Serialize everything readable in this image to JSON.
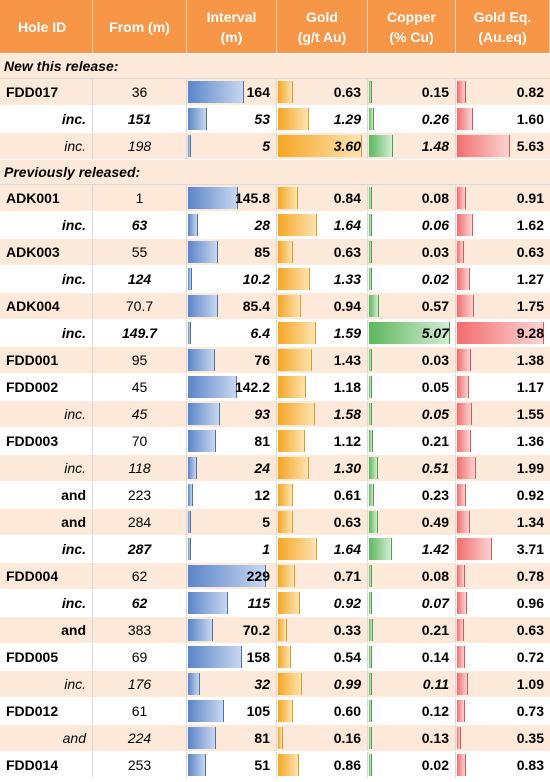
{
  "header": [
    "Hole ID",
    "From (m)",
    "Interval\n(m)",
    "Gold\n(g/t Au)",
    "Copper\n(% Cu)",
    "Gold Eq.\n(Au.eq)"
  ],
  "colors": {
    "header": "#f79646",
    "shade": "#fde9d9",
    "interval_bar": "#5b85c8",
    "gold_bar": "#f5a623",
    "copper_bar": "#5cb85c",
    "goldeq_bar": "#f26d6d"
  },
  "sections": [
    {
      "title": "New this release:",
      "rows": [
        {
          "id": "FDD017",
          "from": "36",
          "interval": "164",
          "gold": "0.63",
          "copper": "0.15",
          "goldeq": "0.82",
          "id_style": "b",
          "from_style": "",
          "vals_style": "b",
          "eq_style": "b",
          "shade": true
        },
        {
          "id": "inc.",
          "from": "151",
          "interval": "53",
          "gold": "1.29",
          "copper": "0.26",
          "goldeq": "1.60",
          "id_style": "bi",
          "from_style": "bi",
          "vals_style": "bi",
          "eq_style": "b",
          "shade": false
        },
        {
          "id": "inc.",
          "from": "198",
          "interval": "5",
          "gold": "3.60",
          "copper": "1.48",
          "goldeq": "5.63",
          "id_style": "i",
          "from_style": "i",
          "vals_style": "bi",
          "eq_style": "b",
          "shade": true
        }
      ]
    },
    {
      "title": "Previously released:",
      "rows": [
        {
          "id": "ADK001",
          "from": "1",
          "interval": "145.8",
          "gold": "0.84",
          "copper": "0.08",
          "goldeq": "0.91",
          "id_style": "b",
          "from_style": "",
          "vals_style": "b",
          "eq_style": "b",
          "shade": true
        },
        {
          "id": "inc.",
          "from": "63",
          "interval": "28",
          "gold": "1.64",
          "copper": "0.06",
          "goldeq": "1.62",
          "id_style": "bi",
          "from_style": "bi",
          "vals_style": "bi",
          "eq_style": "b",
          "shade": false
        },
        {
          "id": "ADK003",
          "from": "55",
          "interval": "85",
          "gold": "0.63",
          "copper": "0.03",
          "goldeq": "0.63",
          "id_style": "b",
          "from_style": "",
          "vals_style": "b",
          "eq_style": "b",
          "shade": true
        },
        {
          "id": "inc.",
          "from": "124",
          "interval": "10.2",
          "gold": "1.33",
          "copper": "0.02",
          "goldeq": "1.27",
          "id_style": "bi",
          "from_style": "bi",
          "vals_style": "bi",
          "eq_style": "b",
          "shade": false
        },
        {
          "id": "ADK004",
          "from": "70.7",
          "interval": "85.4",
          "gold": "0.94",
          "copper": "0.57",
          "goldeq": "1.75",
          "id_style": "b",
          "from_style": "",
          "vals_style": "b",
          "eq_style": "b",
          "shade": true
        },
        {
          "id": "inc.",
          "from": "149.7",
          "interval": "6.4",
          "gold": "1.59",
          "copper": "5.07",
          "goldeq": "9.28",
          "id_style": "bi",
          "from_style": "bi",
          "vals_style": "bi",
          "eq_style": "b",
          "shade": false
        },
        {
          "id": "FDD001",
          "from": "95",
          "interval": "76",
          "gold": "1.43",
          "copper": "0.03",
          "goldeq": "1.38",
          "id_style": "b",
          "from_style": "",
          "vals_style": "b",
          "eq_style": "b",
          "shade": true
        },
        {
          "id": "FDD002",
          "from": "45",
          "interval": "142.2",
          "gold": "1.18",
          "copper": "0.05",
          "goldeq": "1.17",
          "id_style": "b",
          "from_style": "",
          "vals_style": "b",
          "eq_style": "b",
          "shade": false
        },
        {
          "id": "inc.",
          "from": "45",
          "interval": "93",
          "gold": "1.58",
          "copper": "0.05",
          "goldeq": "1.55",
          "id_style": "i",
          "from_style": "i",
          "vals_style": "bi",
          "eq_style": "b",
          "shade": true
        },
        {
          "id": "FDD003",
          "from": "70",
          "interval": "81",
          "gold": "1.12",
          "copper": "0.21",
          "goldeq": "1.36",
          "id_style": "b",
          "from_style": "",
          "vals_style": "b",
          "eq_style": "b",
          "shade": false
        },
        {
          "id": "inc.",
          "from": "118",
          "interval": "24",
          "gold": "1.30",
          "copper": "0.51",
          "goldeq": "1.99",
          "id_style": "i",
          "from_style": "i",
          "vals_style": "bi",
          "eq_style": "b",
          "shade": true
        },
        {
          "id": "and",
          "from": "223",
          "interval": "12",
          "gold": "0.61",
          "copper": "0.23",
          "goldeq": "0.92",
          "id_style": "b",
          "from_style": "",
          "vals_style": "b",
          "eq_style": "b",
          "shade": false
        },
        {
          "id": "and",
          "from": "284",
          "interval": "5",
          "gold": "0.63",
          "copper": "0.49",
          "goldeq": "1.34",
          "id_style": "b",
          "from_style": "",
          "vals_style": "b",
          "eq_style": "b",
          "shade": true
        },
        {
          "id": "inc.",
          "from": "287",
          "interval": "1",
          "gold": "1.64",
          "copper": "1.42",
          "goldeq": "3.71",
          "id_style": "bi",
          "from_style": "bi",
          "vals_style": "bi",
          "eq_style": "b",
          "shade": false
        },
        {
          "id": "FDD004",
          "from": "62",
          "interval": "229",
          "gold": "0.71",
          "copper": "0.08",
          "goldeq": "0.78",
          "id_style": "b",
          "from_style": "",
          "vals_style": "b",
          "eq_style": "b",
          "shade": true
        },
        {
          "id": "inc.",
          "from": "62",
          "interval": "115",
          "gold": "0.92",
          "copper": "0.07",
          "goldeq": "0.96",
          "id_style": "bi",
          "from_style": "bi",
          "vals_style": "bi",
          "eq_style": "b",
          "shade": false
        },
        {
          "id": "and",
          "from": "383",
          "interval": "70.2",
          "gold": "0.33",
          "copper": "0.21",
          "goldeq": "0.63",
          "id_style": "b",
          "from_style": "",
          "vals_style": "b",
          "eq_style": "b",
          "shade": true
        },
        {
          "id": "FDD005",
          "from": "69",
          "interval": "158",
          "gold": "0.54",
          "copper": "0.14",
          "goldeq": "0.72",
          "id_style": "b",
          "from_style": "",
          "vals_style": "b",
          "eq_style": "b",
          "shade": false
        },
        {
          "id": "inc.",
          "from": "176",
          "interval": "32",
          "gold": "0.99",
          "copper": "0.11",
          "goldeq": "1.09",
          "id_style": "i",
          "from_style": "i",
          "vals_style": "bi",
          "eq_style": "b",
          "shade": true
        },
        {
          "id": "FDD012",
          "from": "61",
          "interval": "105",
          "gold": "0.60",
          "copper": "0.12",
          "goldeq": "0.73",
          "id_style": "b",
          "from_style": "",
          "vals_style": "b",
          "eq_style": "b",
          "shade": false
        },
        {
          "id": "and",
          "from": "224",
          "interval": "81",
          "gold": "0.16",
          "copper": "0.13",
          "goldeq": "0.35",
          "id_style": "i",
          "from_style": "i",
          "vals_style": "b",
          "eq_style": "b",
          "shade": true
        },
        {
          "id": "FDD014",
          "from": "253",
          "interval": "51",
          "gold": "0.86",
          "copper": "0.02",
          "goldeq": "0.83",
          "id_style": "b",
          "from_style": "",
          "vals_style": "b",
          "eq_style": "b",
          "shade": false
        }
      ]
    }
  ]
}
